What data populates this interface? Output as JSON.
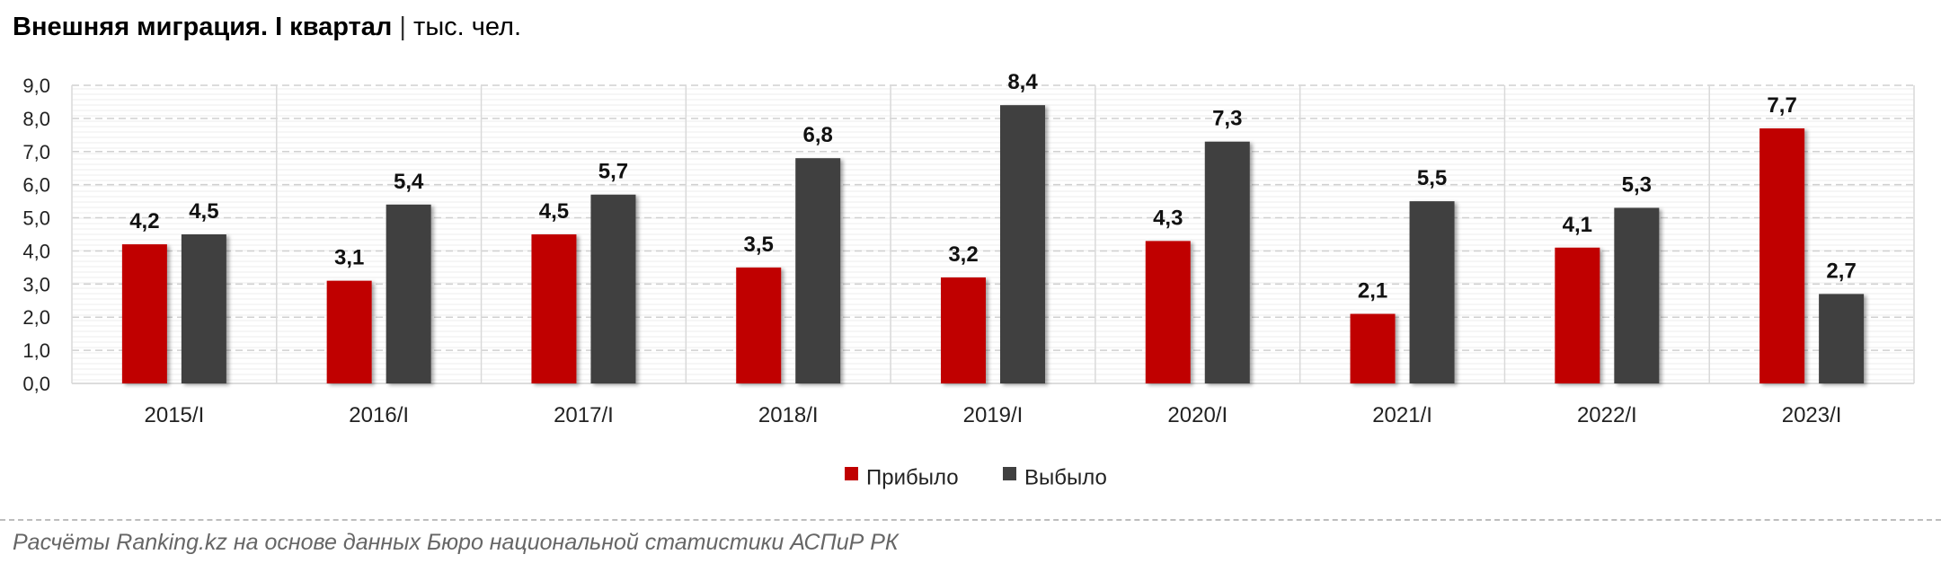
{
  "header": {
    "title_bold": "Внешняя миграция. I квартал",
    "separator": "|",
    "units": "тыс. чел."
  },
  "colors": {
    "arrived": "#c00000",
    "departed": "#404040",
    "grid": "#d0d0d0"
  },
  "chart_data": {
    "type": "bar",
    "categories": [
      "2015/I",
      "2016/I",
      "2017/I",
      "2018/I",
      "2019/I",
      "2020/I",
      "2021/I",
      "2022/I",
      "2023/I"
    ],
    "series": [
      {
        "name": "Прибыло",
        "values": [
          4.2,
          3.1,
          4.5,
          3.5,
          3.2,
          4.3,
          2.1,
          4.1,
          7.7
        ],
        "labels": [
          "4,2",
          "3,1",
          "4,5",
          "3,5",
          "3,2",
          "4,3",
          "2,1",
          "4,1",
          "7,7"
        ]
      },
      {
        "name": "Выбыло",
        "values": [
          4.5,
          5.4,
          5.7,
          6.8,
          8.4,
          7.3,
          5.5,
          5.3,
          2.7
        ],
        "labels": [
          "4,5",
          "5,4",
          "5,7",
          "6,8",
          "8,4",
          "7,3",
          "5,5",
          "5,3",
          "2,7"
        ]
      }
    ],
    "yticks": [
      "0,0",
      "1,0",
      "2,0",
      "3,0",
      "4,0",
      "5,0",
      "6,0",
      "7,0",
      "8,0",
      "9,0"
    ],
    "ylim": [
      0,
      9
    ],
    "grid": true,
    "legend_position": "bottom"
  },
  "footer": {
    "source": "Расчёты Ranking.kz на основе данных Бюро национальной статистики АСПиР РК"
  }
}
